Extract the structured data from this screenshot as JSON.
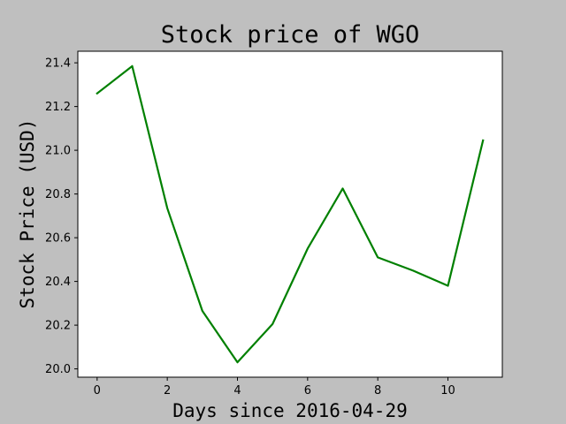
{
  "chart_data": {
    "type": "line",
    "title": "Stock price of WGO",
    "xlabel": "Days since 2016-04-29",
    "ylabel": "Stock Price (USD)",
    "x": [
      0,
      1,
      2,
      3,
      4,
      5,
      6,
      7,
      8,
      9,
      10,
      11
    ],
    "series": [
      {
        "values": [
          21.26,
          21.385,
          20.735,
          20.265,
          20.03,
          20.205,
          20.55,
          20.825,
          20.51,
          20.45,
          20.38,
          21.045
        ],
        "color": "#008000"
      }
    ],
    "xlim": [
      -0.55,
      11.55
    ],
    "ylim": [
      19.962,
      21.453
    ],
    "xticks": [
      0,
      2,
      4,
      6,
      8,
      10
    ],
    "xtick_labels": [
      "0",
      "2",
      "4",
      "6",
      "8",
      "10"
    ],
    "yticks": [
      20.0,
      20.2,
      20.4,
      20.6,
      20.8,
      21.0,
      21.2,
      21.4
    ],
    "ytick_labels": [
      "20.0",
      "20.2",
      "20.4",
      "20.6",
      "20.8",
      "21.0",
      "21.2",
      "21.4"
    ],
    "grid": false,
    "legend": "none",
    "colors": {
      "figure_background": "#bfbfbf",
      "plot_background": "#ffffff",
      "line": "#008000"
    }
  }
}
